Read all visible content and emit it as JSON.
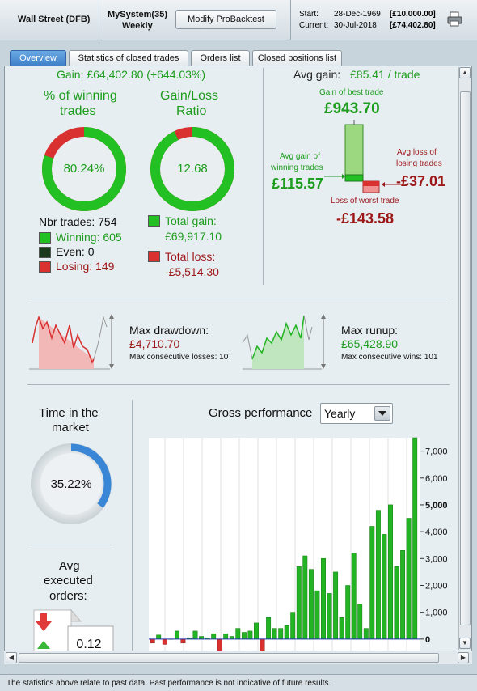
{
  "header": {
    "instrument": "Wall Street (DFB)",
    "system_name": "MySystem(35)",
    "timeframe": "Weekly",
    "modify_button": "Modify ProBacktest",
    "start_label": "Start:",
    "start_date": "28-Dec-1969",
    "start_capital": "[£10,000.00]",
    "current_label": "Current:",
    "current_date": "30-Jul-2018",
    "current_capital": "[£74,402.80]"
  },
  "tabs": [
    {
      "label": "Overview",
      "active": true
    },
    {
      "label": "Statistics of closed trades",
      "active": false
    },
    {
      "label": "Orders list",
      "active": false
    },
    {
      "label": "Closed positions list",
      "active": false
    }
  ],
  "summary": {
    "gain_label": "Gain: £64,402.80 (+644.03%)",
    "winning_title_1": "% of winning",
    "winning_title_2": "trades",
    "winning_pct": "80.24%",
    "winning_fraction": 0.8024,
    "ratio_title_1": "Gain/Loss",
    "ratio_title_2": "Ratio",
    "ratio_value": "12.68",
    "ratio_fraction": 0.927,
    "nbr_trades": "Nbr trades: 754",
    "winning": "Winning: 605",
    "even": "Even: 0",
    "losing": "Losing: 149",
    "total_gain_label": "Total gain:",
    "total_gain": "£69,917.10",
    "total_loss_label": "Total loss:",
    "total_loss": "-£5,514.30"
  },
  "avg": {
    "avg_gain_label": "Avg gain:",
    "avg_gain_value": "£85.41 / trade",
    "best_label": "Gain of best trade",
    "best_value": "£943.70",
    "avg_win_label_1": "Avg gain of",
    "avg_win_label_2": "winning trades",
    "avg_win_value": "£115.57",
    "avg_loss_label_1": "Avg loss of",
    "avg_loss_label_2": "losing trades",
    "avg_loss_value": "-£37.01",
    "worst_label": "Loss of worst trade",
    "worst_value": "-£143.58"
  },
  "drawdown": {
    "title": "Max drawdown:",
    "value": "£4,710.70",
    "sub": "Max consecutive losses: 10"
  },
  "runup": {
    "title": "Max runup:",
    "value": "£65,428.90",
    "sub": "Max consecutive wins: 101"
  },
  "time_market": {
    "title_1": "Time in the",
    "title_2": "market",
    "value": "35.22%",
    "fraction": 0.3522
  },
  "avg_orders": {
    "title_1": "Avg",
    "title_2": "executed",
    "title_3": "orders:",
    "value": "0.12"
  },
  "gross": {
    "title": "Gross performance",
    "select_value": "Yearly"
  },
  "colors": {
    "green": "#22b422",
    "red": "#d93030",
    "blue_ring": "#3a86d6"
  },
  "chart_data": {
    "type": "bar",
    "title": "Gross performance",
    "ylim": [
      -1000,
      7500
    ],
    "y_ticks": [
      "7,000",
      "6,000",
      "5,000",
      "4,000",
      "3,000",
      "2,000",
      "1,000",
      "0"
    ],
    "y_tick_values": [
      7000,
      6000,
      5000,
      4000,
      3000,
      2000,
      1000,
      0
    ],
    "values": [
      -150,
      150,
      -200,
      0,
      300,
      -150,
      50,
      300,
      100,
      50,
      200,
      -700,
      200,
      100,
      400,
      250,
      300,
      600,
      -800,
      800,
      400,
      400,
      500,
      1000,
      2700,
      3100,
      2600,
      1800,
      3000,
      1700,
      2500,
      800,
      2000,
      3200,
      1300,
      400,
      4200,
      4800,
      3900,
      5000,
      2700,
      3300,
      4500,
      7500
    ]
  }
}
